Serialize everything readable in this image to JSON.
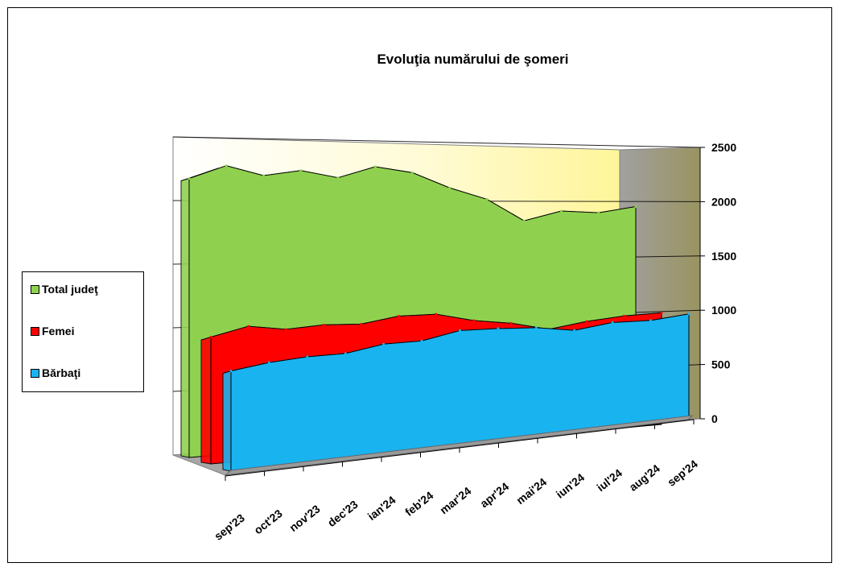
{
  "chart_data": {
    "type": "area",
    "title": "Evoluţia numărului de şomeri",
    "categories": [
      "sep'23",
      "oct'23",
      "nov'23",
      "dec'23",
      "ian'24",
      "feb'24",
      "mar'24",
      "apr'24",
      "mai'24",
      "iun'24",
      "iul'24",
      "aug'24",
      "sep'24"
    ],
    "series": [
      {
        "name": "Total judeţ",
        "color": "#8fd14f",
        "values": [
          2200,
          2300,
          2220,
          2260,
          2200,
          2290,
          2240,
          2110,
          2010,
          1820,
          1900,
          1880,
          1930
        ]
      },
      {
        "name": "Femei",
        "color": "#ff0000",
        "values": [
          1000,
          1070,
          1030,
          1050,
          1040,
          1090,
          1090,
          1020,
          980,
          910,
          960,
          990,
          1000
        ]
      },
      {
        "name": "Bărbaţi",
        "color": "#19b3f0",
        "values": [
          790,
          830,
          850,
          850,
          900,
          900,
          960,
          950,
          930,
          880,
          920,
          910,
          940
        ]
      }
    ],
    "yticks": [
      "0",
      "500",
      "1000",
      "1500",
      "2000",
      "2500"
    ],
    "ylim": [
      0,
      2500
    ],
    "legend_position": "left",
    "grid": true
  }
}
